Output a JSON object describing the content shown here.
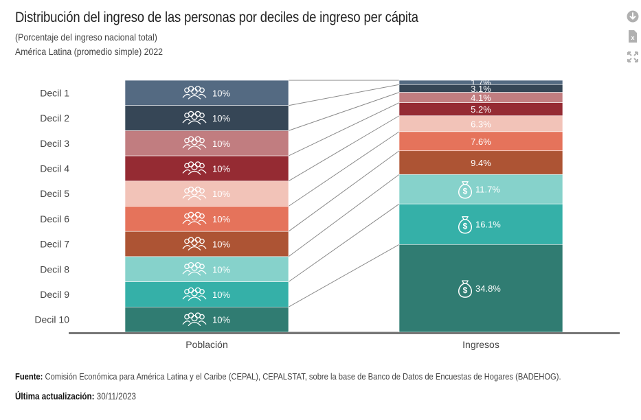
{
  "header": {
    "title": "Distribución del ingreso de las personas por deciles de ingreso per cápita",
    "subtitle": "(Porcentaje del ingreso nacional total)",
    "subtitle2": "América Latina (promedio simple) 2022"
  },
  "toolbar": {
    "download_icon": "download-circle-icon",
    "excel_icon": "excel-export-icon",
    "fullscreen_icon": "fullscreen-icon"
  },
  "footer": {
    "source_label": "Fuente:",
    "source_text": "Comisión Económica para América Latina y el Caribe (CEPAL), CEPALSTAT, sobre la base de Banco de Datos de Encuestas de Hogares (BADEHOG).",
    "updated_label": "Última actualización:",
    "updated_text": "30/11/2023"
  },
  "chart_data": {
    "type": "bar",
    "stacked": true,
    "categories": [
      "Población",
      "Ingresos"
    ],
    "series": [
      {
        "name": "Decil 1",
        "color": "#546a82",
        "values": [
          10,
          1.7
        ],
        "labels": [
          "10%",
          "1.7%"
        ]
      },
      {
        "name": "Decil 2",
        "color": "#364656",
        "values": [
          10,
          3.1
        ],
        "labels": [
          "10%",
          "3.1%"
        ]
      },
      {
        "name": "Decil 3",
        "color": "#c17d80",
        "values": [
          10,
          4.1
        ],
        "labels": [
          "10%",
          "4.1%"
        ]
      },
      {
        "name": "Decil 4",
        "color": "#952b33",
        "values": [
          10,
          5.2
        ],
        "labels": [
          "10%",
          "5.2%"
        ]
      },
      {
        "name": "Decil 5",
        "color": "#f2c3b8",
        "values": [
          10,
          6.3
        ],
        "labels": [
          "10%",
          "6.3%"
        ]
      },
      {
        "name": "Decil 6",
        "color": "#e5735b",
        "values": [
          10,
          7.6
        ],
        "labels": [
          "10%",
          "7.6%"
        ]
      },
      {
        "name": "Decil 7",
        "color": "#ad5434",
        "values": [
          10,
          9.4
        ],
        "labels": [
          "10%",
          "9.4%"
        ]
      },
      {
        "name": "Decil 8",
        "color": "#86d2cb",
        "values": [
          10,
          11.7
        ],
        "labels": [
          "10%",
          "11.7%"
        ]
      },
      {
        "name": "Decil 9",
        "color": "#35b0a8",
        "values": [
          10,
          16.1
        ],
        "labels": [
          "10%",
          "16.1%"
        ]
      },
      {
        "name": "Decil 10",
        "color": "#307c72",
        "values": [
          10,
          34.8
        ],
        "labels": [
          "10%",
          "34.8%"
        ]
      }
    ],
    "ylim": [
      0,
      100
    ],
    "people_icon": "people-group-icon",
    "money_icon": "money-bag-icon",
    "money_icon_deciles": [
      "Decil 8",
      "Decil 9",
      "Decil 10"
    ],
    "grid": false,
    "legend": "left"
  }
}
